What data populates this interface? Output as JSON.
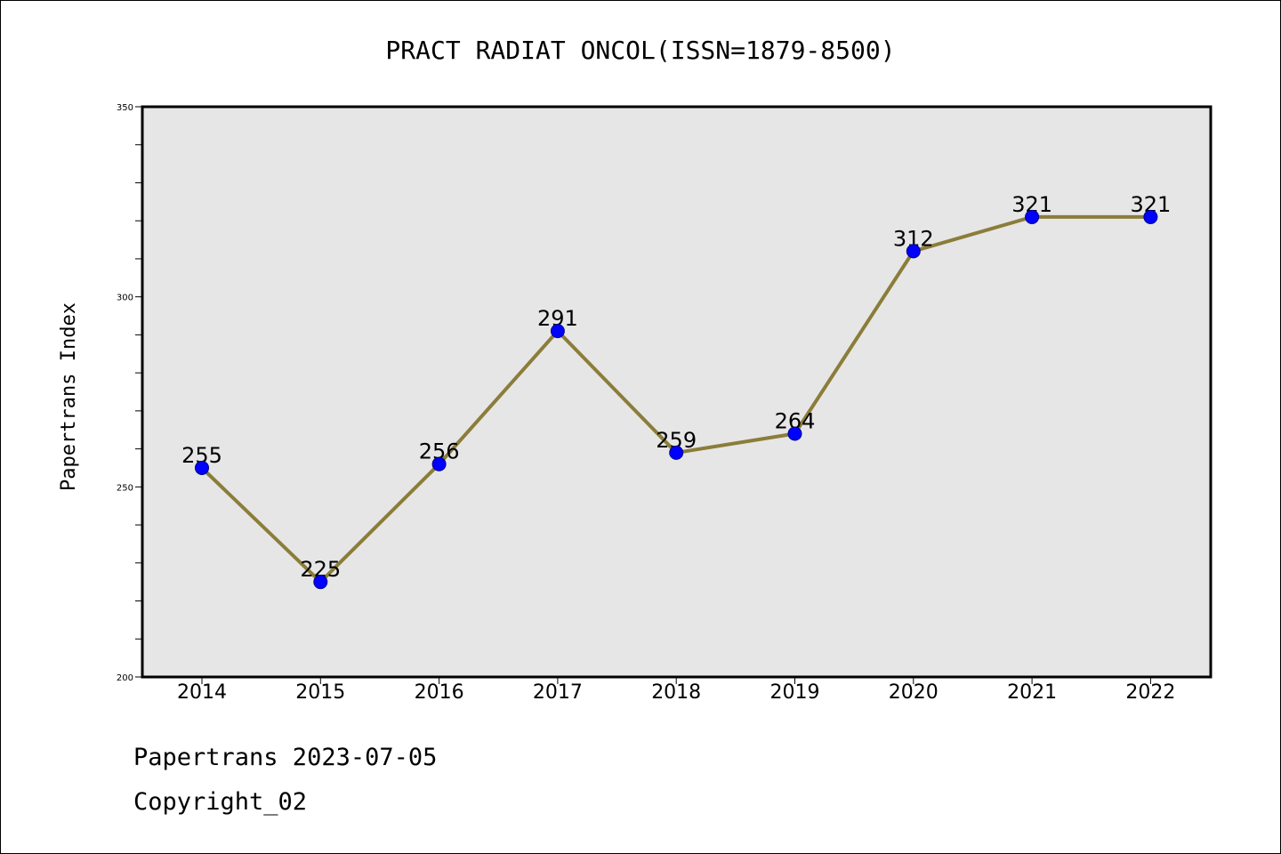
{
  "chart_data": {
    "type": "line",
    "title": "PRACT RADIAT ONCOL(ISSN=1879-8500)",
    "xlabel": "",
    "ylabel": "Papertrans Index",
    "ylim": [
      200,
      350
    ],
    "yticks": [
      "200",
      "250",
      "300",
      "350"
    ],
    "categories": [
      "2014",
      "2015",
      "2016",
      "2017",
      "2018",
      "2019",
      "2020",
      "2021",
      "2022"
    ],
    "series": [
      {
        "values": [
          255,
          225,
          256,
          291,
          259,
          264,
          312,
          321,
          321
        ],
        "labels": [
          "255",
          "225",
          "256",
          "291",
          "259",
          "264",
          "312",
          "321",
          "321"
        ]
      }
    ],
    "grid": false,
    "legend": "none",
    "colors": {
      "line": "#8B7D3A",
      "marker": "#0000FF",
      "plot_background": "#E6E6E6"
    }
  },
  "footer": {
    "date_line": "Papertrans 2023-07-05",
    "copyright_line": "Copyright_02"
  }
}
